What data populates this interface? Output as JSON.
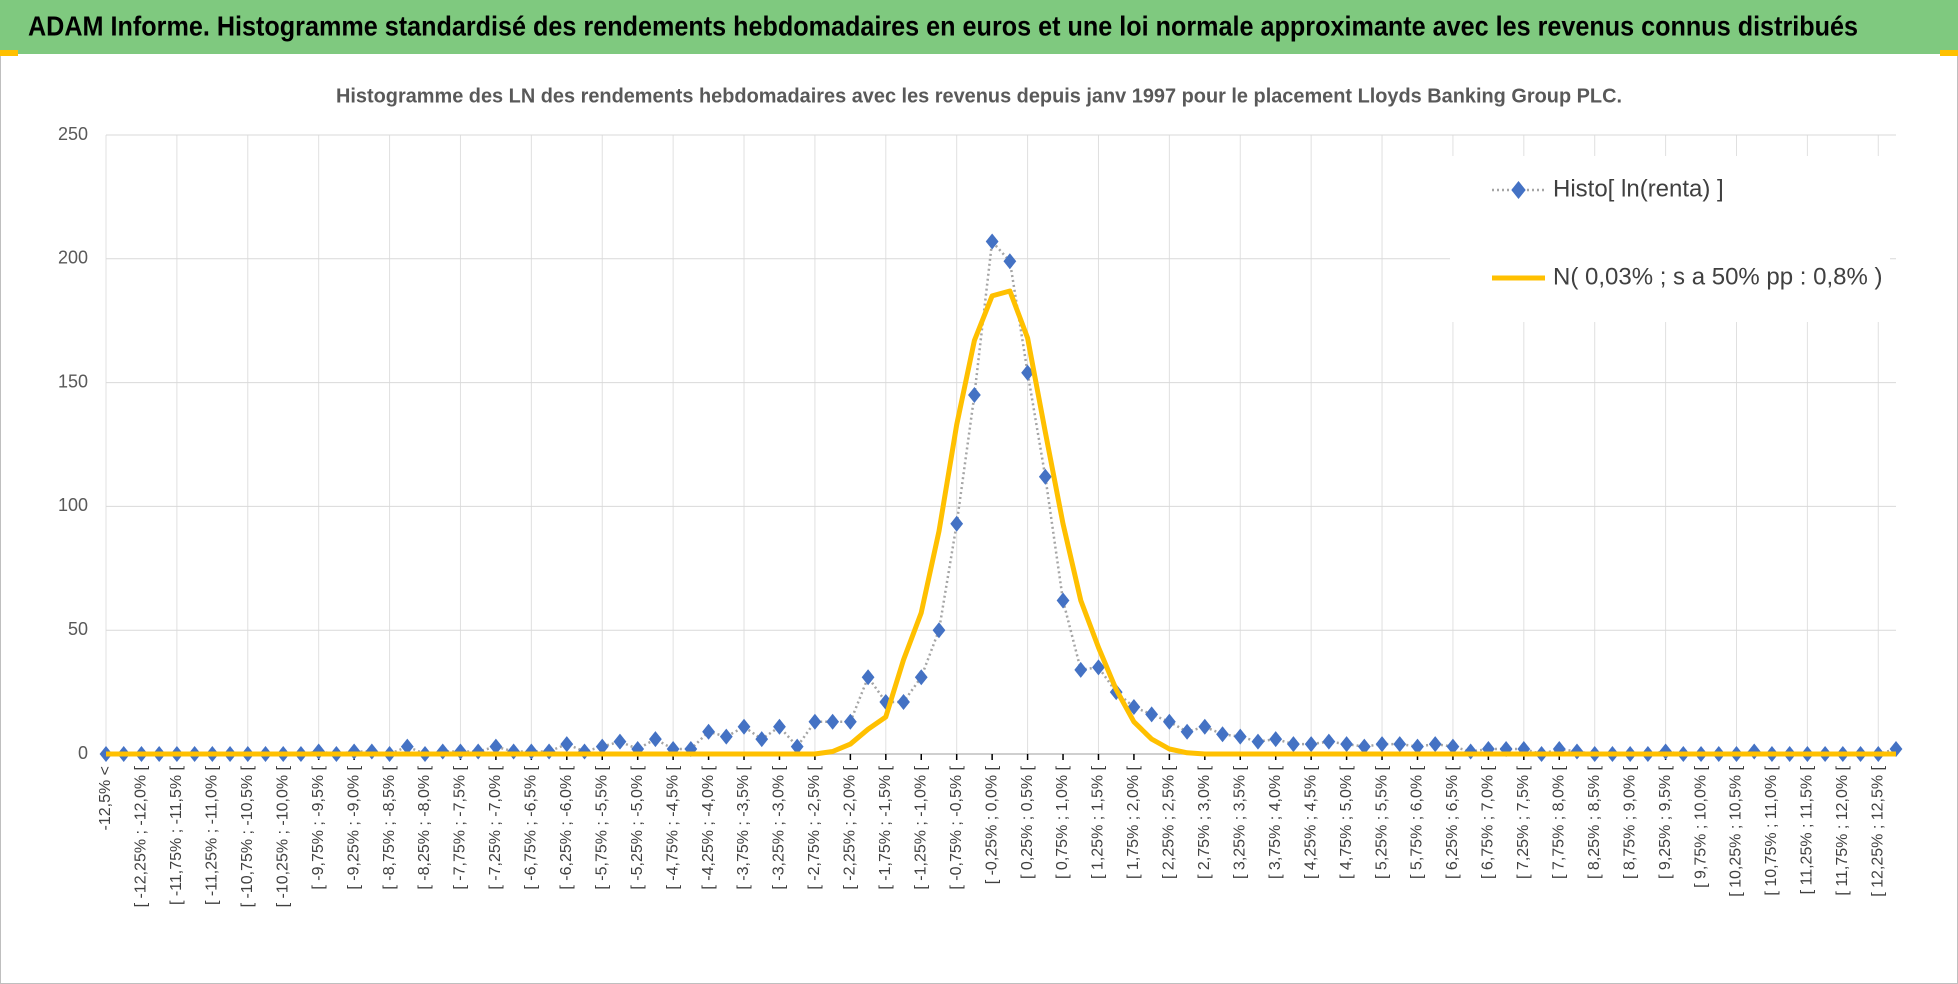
{
  "header": {
    "title": "ADAM Informe. Histogramme standardisé des rendements hebdomadaires en euros et une loi normale approximante avec les revenus connus distribués"
  },
  "chart_data": {
    "type": "line",
    "title": "Histogramme des LN des rendements hebdomadaires avec les revenus depuis janv 1997 pour le placement Lloyds Banking Group PLC.",
    "categories": [
      "-12,5% <",
      null,
      "[ -12,25% ; -12,0% [",
      null,
      "[ -11,75% ; -11,5% [",
      null,
      "[ -11,25% ; -11,0% [",
      null,
      "[ -10,75% ; -10,5% [",
      null,
      "[ -10,25% ; -10,0% [",
      null,
      "[ -9,75% ; -9,5% [",
      null,
      "[ -9,25% ; -9,0% [",
      null,
      "[ -8,75% ; -8,5% [",
      null,
      "[ -8,25% ; -8,0% [",
      null,
      "[ -7,75% ; -7,5% [",
      null,
      "[ -7,25% ; -7,0% [",
      null,
      "[ -6,75% ; -6,5% [",
      null,
      "[ -6,25% ; -6,0% [",
      null,
      "[ -5,75% ; -5,5% [",
      null,
      "[ -5,25% ; -5,0% [",
      null,
      "[ -4,75% ; -4,5% [",
      null,
      "[ -4,25% ; -4,0% [",
      null,
      "[ -3,75% ; -3,5% [",
      null,
      "[ -3,25% ; -3,0% [",
      null,
      "[ -2,75% ; -2,5% [",
      null,
      "[ -2,25% ; -2,0% [",
      null,
      "[ -1,75% ; -1,5% [",
      null,
      "[ -1,25% ; -1,0% [",
      null,
      "[ -0,75% ; -0,5% [",
      null,
      "[ -0,25% ; 0,0% [",
      null,
      "[ 0,25% ; 0,5% [",
      null,
      "[ 0,75% ; 1,0% [",
      null,
      "[ 1,25% ; 1,5% [",
      null,
      "[ 1,75% ; 2,0% [",
      null,
      "[ 2,25% ; 2,5% [",
      null,
      "[ 2,75% ; 3,0% [",
      null,
      "[ 3,25% ; 3,5% [",
      null,
      "[ 3,75% ; 4,0% [",
      null,
      "[ 4,25% ; 4,5% [",
      null,
      "[ 4,75% ; 5,0% [",
      null,
      "[ 5,25% ; 5,5% [",
      null,
      "[ 5,75% ; 6,0% [",
      null,
      "[ 6,25% ; 6,5% [",
      null,
      "[ 6,75% ; 7,0% [",
      null,
      "[ 7,25% ; 7,5% [",
      null,
      "[ 7,75% ; 8,0% [",
      null,
      "[ 8,25% ; 8,5% [",
      null,
      "[ 8,75% ; 9,0% [",
      null,
      "[ 9,25% ; 9,5% [",
      null,
      "[ 9,75% ; 10,0% [",
      null,
      "[ 10,25% ; 10,5% [",
      null,
      "[ 10,75% ; 11,0% [",
      null,
      "[ 11,25% ; 11,5% [",
      null,
      "[ 11,75% ; 12,0% [",
      null,
      "[ 12,25% ; 12,5% [",
      null
    ],
    "series": [
      {
        "name": "Histo[ ln(renta) ]",
        "color": "#4472c4",
        "line_color": "#a5a5a5",
        "marker": "diamond",
        "line": "dotted",
        "values": [
          0,
          0,
          0,
          0,
          0,
          0,
          0,
          0,
          0,
          0,
          0,
          0,
          1,
          0,
          1,
          1,
          0,
          3,
          0,
          1,
          1,
          1,
          3,
          1,
          1,
          1,
          4,
          1,
          3,
          5,
          2,
          6,
          2,
          2,
          9,
          7,
          11,
          6,
          11,
          3,
          13,
          13,
          13,
          31,
          21,
          21,
          31,
          50,
          93,
          145,
          207,
          199,
          154,
          112,
          62,
          34,
          35,
          25,
          19,
          16,
          13,
          9,
          11,
          8,
          7,
          5,
          6,
          4,
          4,
          5,
          4,
          3,
          4,
          4,
          3,
          4,
          3,
          1,
          2,
          2,
          2,
          0,
          2,
          1,
          0,
          0,
          0,
          0,
          1,
          0,
          0,
          0,
          0,
          1,
          0,
          0,
          0,
          0,
          0,
          0,
          0,
          2
        ]
      },
      {
        "name": "N( 0,03% ; s a 50% pp : 0,8% )",
        "color": "#ffc000",
        "marker": "none",
        "line": "solid",
        "values": [
          0,
          0,
          0,
          0,
          0,
          0,
          0,
          0,
          0,
          0,
          0,
          0,
          0,
          0,
          0,
          0,
          0,
          0,
          0,
          0,
          0,
          0,
          0,
          0,
          0,
          0,
          0,
          0,
          0,
          0,
          0,
          0,
          0,
          0,
          0,
          0,
          0,
          0,
          0,
          0,
          0,
          1,
          4,
          10,
          15,
          38,
          57,
          90,
          133,
          167,
          185,
          187,
          168,
          130,
          93,
          62,
          43,
          26,
          13,
          6,
          2,
          0.5,
          0,
          0,
          0,
          0,
          0,
          0,
          0,
          0,
          0,
          0,
          0,
          0,
          0,
          0,
          0,
          0,
          0,
          0,
          0,
          0,
          0,
          0,
          0,
          0,
          0,
          0,
          0,
          0,
          0,
          0,
          0,
          0,
          0,
          0,
          0,
          0,
          0,
          0,
          0,
          0
        ]
      }
    ],
    "ylim": [
      0,
      250
    ],
    "yticks": [
      0,
      50,
      100,
      150,
      200,
      250
    ],
    "grid": true,
    "legend": "upper right"
  }
}
